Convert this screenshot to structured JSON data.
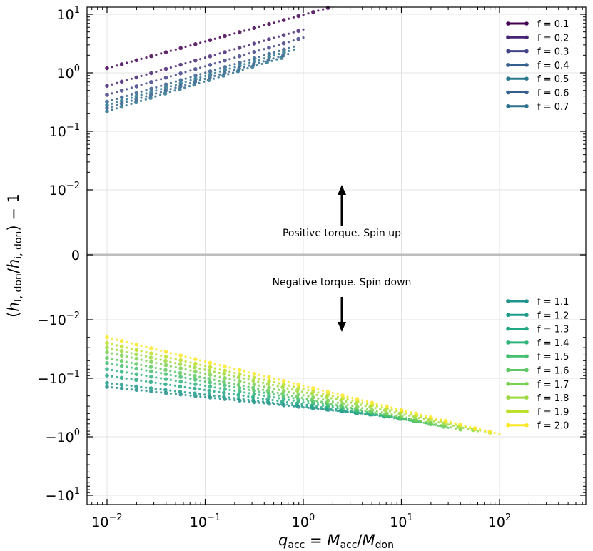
{
  "chart_data": {
    "type": "scatter",
    "xscale": "log",
    "yscale": "symlog",
    "xlim": [
      0.0065,
      800
    ],
    "ylim": [
      -14,
      14
    ],
    "xlabel": "q_acc = M_acc / M_don",
    "ylabel": "(h_f, don / h_i, don) − 1",
    "x_ticks": [
      {
        "value": 0.01,
        "base": "10",
        "exp": "−2"
      },
      {
        "value": 0.1,
        "base": "10",
        "exp": "−1"
      },
      {
        "value": 1,
        "base": "10",
        "exp": "0"
      },
      {
        "value": 10,
        "base": "10",
        "exp": "1"
      },
      {
        "value": 100,
        "base": "10",
        "exp": "2"
      }
    ],
    "y_ticks": [
      {
        "value": 10,
        "base": "10",
        "exp": "1"
      },
      {
        "value": 1,
        "base": "10",
        "exp": "0"
      },
      {
        "value": 0.1,
        "base": "10",
        "exp": "−1"
      },
      {
        "value": 0.01,
        "base": "10",
        "exp": "−2"
      },
      {
        "value": 0,
        "base": "0",
        "exp": ""
      },
      {
        "value": -0.01,
        "base": "−10",
        "exp": "−2"
      },
      {
        "value": -0.1,
        "base": "−10",
        "exp": "−1"
      },
      {
        "value": -1,
        "base": "−10",
        "exp": "0"
      },
      {
        "value": -10,
        "base": "−10",
        "exp": "1"
      }
    ],
    "annotations": {
      "positive": "Positive torque. Spin up",
      "negative": "Negative torque. Spin down"
    },
    "legend_top_title": "",
    "series": [
      {
        "name": "f = 0.1",
        "f": 0.1,
        "color": "#440154",
        "x_range": [
          0.01,
          2.0
        ],
        "y_start": 1.2,
        "y_end": 13.5,
        "y_offset": 0.0
      },
      {
        "name": "f = 0.2",
        "f": 0.2,
        "color": "#482475",
        "x_range": [
          0.01,
          1.0
        ],
        "y_start": 0.6,
        "y_end": 5.5,
        "y_offset": 0.0
      },
      {
        "name": "f = 0.3",
        "f": 0.3,
        "color": "#414487",
        "x_range": [
          0.01,
          1.0
        ],
        "y_start": 0.42,
        "y_end": 4.0,
        "y_offset": 0.0
      },
      {
        "name": "f = 0.4",
        "f": 0.4,
        "color": "#355f8d",
        "x_range": [
          0.01,
          0.8
        ],
        "y_start": 0.32,
        "y_end": 2.8,
        "y_offset": 0.0
      },
      {
        "name": "f = 0.5",
        "f": 0.5,
        "color": "#2a788e",
        "x_range": [
          0.01,
          0.8
        ],
        "y_start": 0.28,
        "y_end": 2.5,
        "y_offset": 0.0
      },
      {
        "name": "f = 0.6",
        "f": 0.6,
        "color": "#355f8d",
        "x_range": [
          0.01,
          0.7
        ],
        "y_start": 0.25,
        "y_end": 2.1,
        "y_offset": 0.0
      },
      {
        "name": "f = 0.7",
        "f": 0.7,
        "color": "#2c728e",
        "x_range": [
          0.01,
          0.6
        ],
        "y_start": 0.22,
        "y_end": 1.8,
        "y_offset": 0.0
      },
      {
        "name": "f = 1.1",
        "f": 1.1,
        "color": "#21918c",
        "x_range": [
          0.01,
          8.0
        ],
        "y_start": -0.14,
        "y_end": -0.45,
        "y_offset": 0.0
      },
      {
        "name": "f = 1.2",
        "f": 1.2,
        "color": "#1e9b8a",
        "x_range": [
          0.01,
          12.0
        ],
        "y_start": -0.12,
        "y_end": -0.5,
        "y_offset": 0.0
      },
      {
        "name": "f = 1.3",
        "f": 1.3,
        "color": "#22a884",
        "x_range": [
          0.01,
          15.0
        ],
        "y_start": -0.09,
        "y_end": -0.55,
        "y_offset": 0.0
      },
      {
        "name": "f = 1.4",
        "f": 1.4,
        "color": "#2fb47c",
        "x_range": [
          0.01,
          20.0
        ],
        "y_start": -0.07,
        "y_end": -0.6,
        "y_offset": 0.0
      },
      {
        "name": "f = 1.5",
        "f": 1.5,
        "color": "#44bf70",
        "x_range": [
          0.01,
          25.0
        ],
        "y_start": -0.055,
        "y_end": -0.65,
        "y_offset": 0.0
      },
      {
        "name": "f = 1.6",
        "f": 1.6,
        "color": "#5ec962",
        "x_range": [
          0.01,
          30.0
        ],
        "y_start": -0.045,
        "y_end": -0.7,
        "y_offset": 0.0
      },
      {
        "name": "f = 1.7",
        "f": 1.7,
        "color": "#7ad151",
        "x_range": [
          0.01,
          40.0
        ],
        "y_start": -0.036,
        "y_end": -0.75,
        "y_offset": 0.0
      },
      {
        "name": "f = 1.8",
        "f": 1.8,
        "color": "#9bd93c",
        "x_range": [
          0.01,
          60.0
        ],
        "y_start": -0.03,
        "y_end": -0.8,
        "y_offset": 0.0
      },
      {
        "name": "f = 1.9",
        "f": 1.9,
        "color": "#bddf26",
        "x_range": [
          0.01,
          80.0
        ],
        "y_start": -0.025,
        "y_end": -0.85,
        "y_offset": 0.0
      },
      {
        "name": "f = 2.0",
        "f": 2.0,
        "color": "#fde725",
        "x_range": [
          0.01,
          100.0
        ],
        "y_start": -0.02,
        "y_end": -0.9,
        "y_offset": 0.0
      }
    ]
  }
}
